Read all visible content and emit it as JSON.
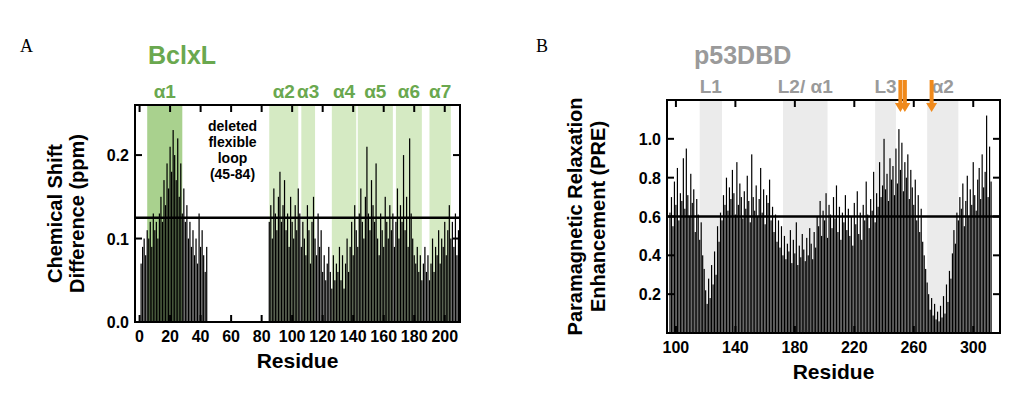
{
  "chart_data": [
    {
      "type": "bar",
      "panel": "A",
      "title": "BclxL",
      "color": "#6aa84f",
      "x_label": "Residue",
      "y_label": [
        "Chemical Shift",
        "Difference (ppm)"
      ],
      "xlim": [
        -3,
        210
      ],
      "xticks": [
        0,
        20,
        40,
        60,
        80,
        100,
        120,
        140,
        160,
        180,
        200
      ],
      "ylim": [
        0,
        0.26
      ],
      "yticks": [
        {
          "value": 0,
          "label": "0.0"
        },
        {
          "value": 0.1,
          "label": "0.1"
        },
        {
          "value": 0.2,
          "label": "0.2"
        }
      ],
      "threshold": 0.125,
      "regions": [
        {
          "label": "α1",
          "start": 5,
          "end": 28,
          "color": "#a9d18e"
        },
        {
          "label": "α2",
          "start": 85,
          "end": 104,
          "color": "#d5eac3"
        },
        {
          "label": "α3",
          "start": 106,
          "end": 115,
          "color": "#d5eac3"
        },
        {
          "label": "α4",
          "start": 126,
          "end": 142,
          "color": "#d5eac3"
        },
        {
          "label": "α5",
          "start": 143,
          "end": 166,
          "color": "#d5eac3"
        },
        {
          "label": "α6",
          "start": 168,
          "end": 185,
          "color": "#d5eac3"
        },
        {
          "label": "α7",
          "start": 190,
          "end": 204,
          "color": "#d5eac3"
        }
      ],
      "annotation": [
        "deleted",
        "flexible",
        "loop",
        "(45-84)"
      ],
      "x": [
        1,
        2,
        3,
        4,
        5,
        6,
        7,
        8,
        9,
        10,
        11,
        12,
        13,
        14,
        15,
        16,
        17,
        18,
        19,
        20,
        21,
        22,
        23,
        24,
        25,
        26,
        27,
        28,
        29,
        30,
        31,
        32,
        33,
        34,
        35,
        36,
        37,
        38,
        39,
        40,
        41,
        42,
        43,
        44,
        85,
        86,
        87,
        88,
        89,
        90,
        91,
        92,
        93,
        94,
        95,
        96,
        97,
        98,
        99,
        100,
        101,
        102,
        103,
        104,
        105,
        106,
        107,
        108,
        109,
        110,
        111,
        112,
        113,
        114,
        115,
        116,
        117,
        118,
        119,
        120,
        121,
        122,
        123,
        124,
        125,
        126,
        127,
        128,
        129,
        130,
        131,
        132,
        133,
        134,
        135,
        136,
        137,
        138,
        139,
        140,
        141,
        142,
        143,
        144,
        145,
        146,
        147,
        148,
        149,
        150,
        151,
        152,
        153,
        154,
        155,
        156,
        157,
        158,
        159,
        160,
        161,
        162,
        163,
        164,
        165,
        166,
        167,
        168,
        169,
        170,
        171,
        172,
        173,
        174,
        175,
        176,
        177,
        178,
        179,
        180,
        181,
        182,
        183,
        184,
        185,
        186,
        187,
        188,
        189,
        190,
        191,
        192,
        193,
        194,
        195,
        196,
        197,
        198,
        199,
        200,
        201,
        202,
        203,
        204,
        205,
        206,
        207,
        208,
        209
      ],
      "values": [
        0.07,
        0.09,
        0.1,
        0.08,
        0.11,
        0.1,
        0.12,
        0.09,
        0.13,
        0.11,
        0.12,
        0.1,
        0.13,
        0.15,
        0.12,
        0.17,
        0.14,
        0.19,
        0.16,
        0.21,
        0.18,
        0.23,
        0.2,
        0.17,
        0.22,
        0.15,
        0.19,
        0.13,
        0.16,
        0.12,
        0.14,
        0.1,
        0.12,
        0.09,
        0.11,
        0.08,
        0.1,
        0.07,
        0.13,
        0.09,
        0.11,
        0.08,
        0.06,
        0.09,
        0.12,
        0.14,
        0.1,
        0.16,
        0.13,
        0.11,
        0.15,
        0.18,
        0.12,
        0.14,
        0.17,
        0.11,
        0.13,
        0.09,
        0.15,
        0.12,
        0.1,
        0.14,
        0.11,
        0.16,
        0.13,
        0.09,
        0.12,
        0.1,
        0.08,
        0.14,
        0.11,
        0.07,
        0.12,
        0.15,
        0.1,
        0.08,
        0.13,
        0.09,
        0.11,
        0.06,
        0.08,
        0.05,
        0.07,
        0.09,
        0.06,
        0.04,
        0.08,
        0.05,
        0.07,
        0.06,
        0.09,
        0.05,
        0.08,
        0.04,
        0.07,
        0.1,
        0.06,
        0.09,
        0.12,
        0.08,
        0.14,
        0.11,
        0.09,
        0.13,
        0.16,
        0.12,
        0.1,
        0.15,
        0.21,
        0.13,
        0.11,
        0.17,
        0.14,
        0.12,
        0.19,
        0.1,
        0.08,
        0.13,
        0.11,
        0.09,
        0.15,
        0.12,
        0.1,
        0.14,
        0.11,
        0.13,
        0.09,
        0.12,
        0.16,
        0.1,
        0.14,
        0.12,
        0.2,
        0.11,
        0.15,
        0.09,
        0.22,
        0.13,
        0.1,
        0.08,
        0.07,
        0.09,
        0.06,
        0.08,
        0.05,
        0.07,
        0.09,
        0.06,
        0.08,
        0.05,
        0.07,
        0.1,
        0.06,
        0.09,
        0.08,
        0.11,
        0.07,
        0.1,
        0.09,
        0.12,
        0.08,
        0.11,
        0.14,
        0.1,
        0.12,
        0.09,
        0.13,
        0.08,
        0.11
      ]
    },
    {
      "type": "bar",
      "panel": "B",
      "title": "p53DBD",
      "color": "#9a9a9a",
      "x_label": "Residue",
      "y_label": [
        "Paramagnetic Relaxation",
        "Enhancement (PRE)"
      ],
      "xlim": [
        94,
        318
      ],
      "xticks": [
        100,
        140,
        180,
        220,
        260,
        300
      ],
      "ylim": [
        0,
        1.2
      ],
      "yticks": [
        0.2,
        0.4,
        0.6,
        0.8,
        {
          "value": 1,
          "label": "1.0"
        }
      ],
      "threshold": 0.6,
      "regions": [
        {
          "label": "L1",
          "start": 116,
          "end": 131,
          "color": "#ebebeb"
        },
        {
          "label": "L2/ α1",
          "start": 172,
          "end": 202,
          "color": "#ebebeb"
        },
        {
          "label": "L3",
          "start": 234,
          "end": 248,
          "color": "#ebebeb"
        },
        {
          "label": "α2",
          "start": 269,
          "end": 290,
          "color": "#ebebeb"
        }
      ],
      "arrows": [
        251,
        254,
        272
      ],
      "arrow_color": "#f08a1c",
      "x": [
        96,
        97,
        98,
        99,
        100,
        101,
        102,
        103,
        104,
        105,
        106,
        107,
        108,
        109,
        110,
        111,
        112,
        113,
        114,
        115,
        116,
        117,
        118,
        119,
        120,
        121,
        122,
        123,
        124,
        125,
        126,
        127,
        128,
        129,
        130,
        131,
        132,
        133,
        134,
        135,
        136,
        137,
        138,
        139,
        140,
        141,
        142,
        143,
        144,
        145,
        146,
        147,
        148,
        149,
        150,
        151,
        152,
        153,
        154,
        155,
        156,
        157,
        158,
        159,
        160,
        161,
        162,
        163,
        164,
        165,
        166,
        167,
        168,
        169,
        170,
        171,
        172,
        173,
        174,
        175,
        176,
        177,
        178,
        179,
        180,
        181,
        182,
        183,
        184,
        185,
        186,
        187,
        188,
        189,
        190,
        191,
        192,
        193,
        194,
        195,
        196,
        197,
        198,
        199,
        200,
        201,
        202,
        203,
        204,
        205,
        206,
        207,
        208,
        209,
        210,
        211,
        212,
        213,
        214,
        215,
        216,
        217,
        218,
        219,
        220,
        221,
        222,
        223,
        224,
        225,
        226,
        227,
        228,
        229,
        230,
        231,
        232,
        233,
        234,
        235,
        236,
        237,
        238,
        239,
        240,
        241,
        242,
        243,
        244,
        245,
        246,
        247,
        248,
        249,
        250,
        251,
        252,
        253,
        254,
        255,
        256,
        257,
        258,
        259,
        260,
        261,
        262,
        263,
        264,
        265,
        266,
        267,
        268,
        269,
        270,
        271,
        272,
        273,
        274,
        275,
        276,
        277,
        278,
        279,
        280,
        281,
        282,
        283,
        284,
        285,
        286,
        287,
        288,
        289,
        290,
        291,
        292,
        293,
        294,
        295,
        296,
        297,
        298,
        299,
        300,
        301,
        302,
        303,
        304,
        305,
        306,
        307,
        308,
        309,
        310,
        311,
        312
      ],
      "values": [
        0.62,
        0.7,
        0.55,
        0.78,
        0.66,
        0.85,
        0.58,
        0.72,
        0.68,
        0.9,
        0.64,
        0.95,
        0.71,
        0.6,
        0.82,
        0.67,
        0.74,
        0.52,
        0.69,
        0.61,
        0.48,
        0.57,
        0.4,
        0.33,
        0.22,
        0.15,
        0.28,
        0.18,
        0.35,
        0.25,
        0.42,
        0.3,
        0.55,
        0.47,
        0.62,
        0.58,
        0.71,
        0.66,
        0.8,
        0.63,
        0.75,
        0.69,
        0.84,
        0.72,
        0.61,
        0.88,
        0.66,
        0.77,
        0.7,
        0.59,
        0.73,
        0.64,
        0.81,
        0.68,
        0.57,
        0.92,
        0.7,
        0.63,
        0.76,
        0.6,
        0.69,
        0.85,
        0.62,
        0.74,
        0.56,
        0.71,
        0.67,
        0.79,
        0.58,
        0.65,
        0.52,
        0.61,
        0.47,
        0.58,
        0.44,
        0.55,
        0.4,
        0.5,
        0.38,
        0.46,
        0.42,
        0.53,
        0.36,
        0.48,
        0.41,
        0.57,
        0.35,
        0.45,
        0.39,
        0.51,
        0.43,
        0.37,
        0.49,
        0.4,
        0.54,
        0.46,
        0.38,
        0.52,
        0.44,
        0.6,
        0.55,
        0.68,
        0.5,
        0.63,
        0.58,
        0.72,
        0.49,
        0.66,
        0.61,
        0.54,
        0.7,
        0.59,
        0.76,
        0.52,
        0.65,
        0.48,
        0.62,
        0.57,
        0.71,
        0.53,
        0.64,
        0.5,
        0.6,
        0.45,
        0.67,
        0.56,
        0.73,
        0.51,
        0.62,
        0.48,
        0.66,
        0.58,
        0.78,
        0.61,
        0.54,
        0.69,
        0.63,
        0.83,
        0.57,
        0.72,
        0.65,
        0.88,
        0.7,
        0.76,
        1.0,
        0.74,
        0.82,
        0.68,
        0.9,
        0.79,
        0.86,
        0.71,
        0.95,
        0.77,
        1.05,
        0.84,
        0.98,
        0.73,
        0.88,
        0.8,
        0.92,
        0.69,
        0.84,
        0.75,
        0.66,
        0.79,
        0.58,
        0.71,
        0.52,
        0.64,
        0.47,
        0.4,
        0.33,
        0.26,
        0.2,
        0.12,
        0.18,
        0.09,
        0.15,
        0.07,
        0.11,
        0.06,
        0.14,
        0.08,
        0.19,
        0.1,
        0.25,
        0.16,
        0.32,
        0.28,
        0.41,
        0.53,
        0.46,
        0.62,
        0.58,
        0.7,
        0.64,
        0.77,
        0.55,
        0.68,
        0.81,
        0.6,
        0.74,
        0.66,
        0.88,
        0.71,
        0.63,
        0.79,
        0.85,
        0.69,
        0.92,
        0.75,
        0.83,
        1.12,
        0.7,
        0.96,
        0.78
      ]
    }
  ]
}
